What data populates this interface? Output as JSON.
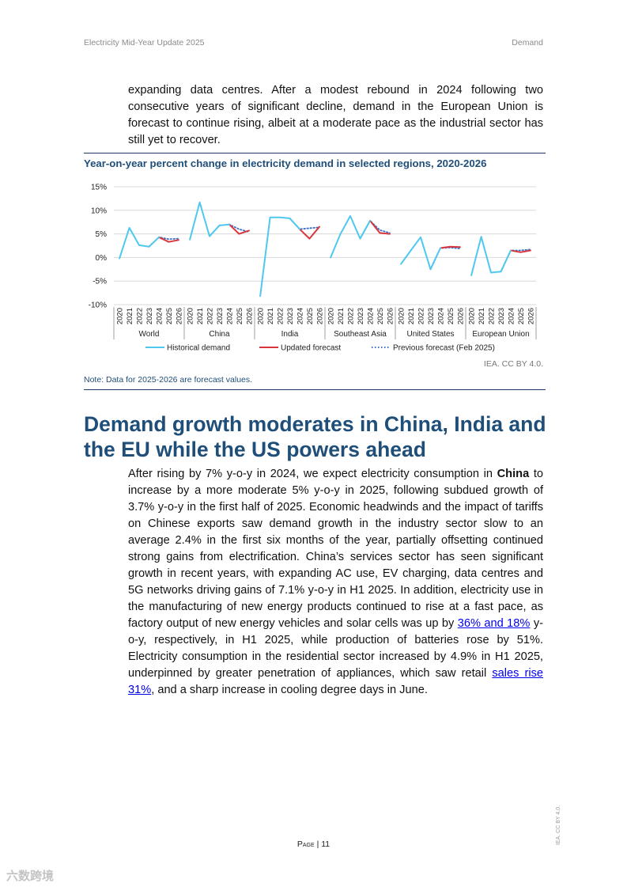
{
  "header": {
    "left": "Electricity Mid-Year Update 2025",
    "right": "Demand"
  },
  "intro": {
    "text": "expanding data centres. After a modest rebound in 2024 following two consecutive years of significant decline, demand in the European Union is forecast to continue rising, albeit at a moderate pace as the industrial sector has still yet to recover."
  },
  "chart_data": {
    "type": "line",
    "title": "Year-on-year percent change in electricity demand in selected regions, 2020-2026",
    "ylim": [
      -10,
      15
    ],
    "yticks": [
      15,
      10,
      5,
      0,
      -5,
      -10
    ],
    "ytick_labels": [
      "15%",
      "10%",
      "5%",
      "0%",
      "-5%",
      "-10%"
    ],
    "years": [
      "2020",
      "2021",
      "2022",
      "2023",
      "2024",
      "2025",
      "2026"
    ],
    "groups": [
      "World",
      "China",
      "India",
      "Southeast Asia",
      "United States",
      "European Union"
    ],
    "series": [
      {
        "name": "Historical demand",
        "color": "#4ec8ef",
        "style": "solid",
        "data": [
          [
            -0.2,
            6.3,
            2.6,
            2.3,
            4.3,
            null,
            null
          ],
          [
            3.8,
            11.7,
            4.5,
            6.8,
            7.0,
            null,
            null
          ],
          [
            -8.2,
            8.5,
            8.5,
            8.3,
            6.0,
            null,
            null
          ],
          [
            0.0,
            5.0,
            8.8,
            4.0,
            7.8,
            null,
            null
          ],
          [
            -1.4,
            1.5,
            4.3,
            -2.5,
            2.0,
            null,
            null
          ],
          [
            -3.8,
            4.4,
            -3.2,
            -3.0,
            1.5,
            null,
            null
          ]
        ]
      },
      {
        "name": "Updated forecast",
        "color": "#d9363e",
        "style": "solid",
        "data": [
          [
            null,
            null,
            null,
            null,
            4.3,
            3.3,
            3.7
          ],
          [
            null,
            null,
            null,
            null,
            7.0,
            5.0,
            5.7
          ],
          [
            null,
            null,
            null,
            null,
            6.0,
            4.0,
            6.5
          ],
          [
            null,
            null,
            null,
            null,
            7.8,
            5.2,
            5.0
          ],
          [
            null,
            null,
            null,
            null,
            2.0,
            2.3,
            2.2
          ],
          [
            null,
            null,
            null,
            null,
            1.5,
            1.1,
            1.5
          ]
        ]
      },
      {
        "name": "Previous forecast (Feb 2025)",
        "color": "#3b6fc4",
        "style": "dotted",
        "data": [
          [
            null,
            null,
            null,
            2.3,
            4.3,
            3.9,
            4.0
          ],
          [
            null,
            null,
            null,
            6.8,
            7.0,
            6.0,
            5.4
          ],
          [
            null,
            null,
            null,
            8.3,
            6.0,
            6.2,
            6.4
          ],
          [
            null,
            null,
            null,
            4.0,
            7.8,
            5.8,
            5.2
          ],
          [
            null,
            null,
            null,
            -2.5,
            2.0,
            2.1,
            1.9
          ],
          [
            null,
            null,
            null,
            -3.0,
            1.5,
            1.5,
            1.7
          ]
        ]
      }
    ],
    "legend_position": "bottom",
    "grid": true
  },
  "chart_credit": "IEA. CC BY 4.0.",
  "note": "Note: Data for 2025-2026 are forecast values.",
  "section": {
    "heading": "Demand growth moderates in China, India and the EU while the US powers ahead",
    "p1_a": "After rising by 7% y-o-y in 2024, we expect electricity consumption in ",
    "p1_bold": "China",
    "p1_b": " to increase by a more moderate 5% y-o-y in 2025, following subdued growth of 3.7% y-o-y in the first half of 2025. Economic headwinds and the impact of tariffs on Chinese exports saw demand growth in the industry sector slow to an average 2.4% in the first six months of the year, partially offsetting continued strong gains from electrification. China’s services sector has seen significant growth in recent years, with expanding AC use, EV charging, data centres and 5G networks driving gains of 7.1% y-o-y in H1 2025. In addition, electricity use in the manufacturing of new energy products continued to rise at a fast pace, as factory output of new energy vehicles and solar cells was up by ",
    "p1_link1": "36% and 18%",
    "p1_c": " y-o-y, respectively, in H1 2025, while production of batteries rose by 51%. Electricity consumption in the residential sector increased by 4.9% in H1 2025, underpinned by greater penetration of appliances, which saw retail ",
    "p1_link2": "sales rise 31%",
    "p1_d": ", and a sharp increase in cooling degree days in June."
  },
  "footer": {
    "page_label": "Page",
    "page_number": "11"
  },
  "side_credit": "IEA. CC BY 4.0.",
  "watermark": "六数跨境"
}
